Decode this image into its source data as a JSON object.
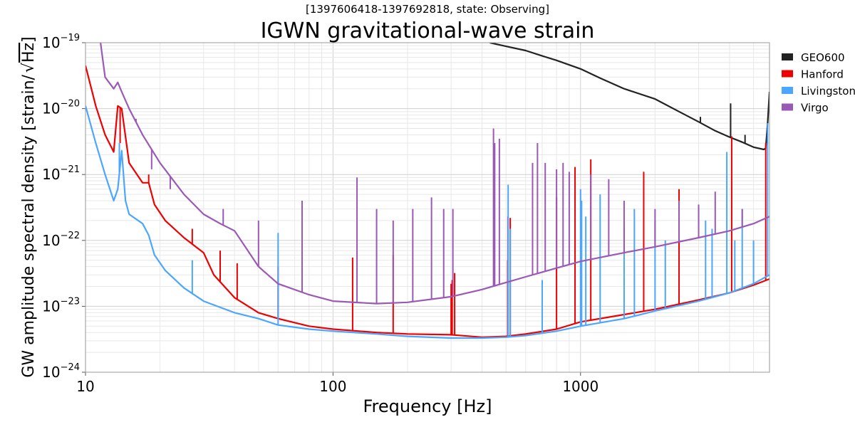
{
  "chart_data": {
    "type": "line",
    "subtitle": "[1397606418-1397692818, state: Observing]",
    "title": "IGWN gravitational-wave strain",
    "xlabel": "Frequency [Hz]",
    "ylabel_prefix": "GW amplitude spectral density [strain/",
    "ylabel_sqrt": "Hz",
    "ylabel_suffix": "]",
    "x_scale": "log",
    "y_scale": "log",
    "xlim": [
      10,
      5800
    ],
    "ylim": [
      1e-24,
      1e-19
    ],
    "x_ticks": [
      {
        "value": 10,
        "label": "10"
      },
      {
        "value": 100,
        "label": "100"
      },
      {
        "value": 1000,
        "label": "1000"
      }
    ],
    "y_ticks": [
      {
        "value": 1e-24,
        "base": "10",
        "exp": "−24"
      },
      {
        "value": 1e-23,
        "base": "10",
        "exp": "−23"
      },
      {
        "value": 1e-22,
        "base": "10",
        "exp": "−22"
      },
      {
        "value": 1e-21,
        "base": "10",
        "exp": "−21"
      },
      {
        "value": 1e-20,
        "base": "10",
        "exp": "−20"
      },
      {
        "value": 1e-19,
        "base": "10",
        "exp": "−19"
      }
    ],
    "grid": true,
    "legend_position": "right",
    "series": [
      {
        "name": "GEO600",
        "color": "#222222",
        "points": [
          [
            430,
            1e-19
          ],
          [
            500,
            8.8e-20
          ],
          [
            600,
            7.6e-20
          ],
          [
            700,
            6.3e-20
          ],
          [
            800,
            5.4e-20
          ],
          [
            1000,
            4e-20
          ],
          [
            1200,
            2.9e-20
          ],
          [
            1500,
            2e-20
          ],
          [
            2000,
            1.4e-20
          ],
          [
            2500,
            9e-21
          ],
          [
            3000,
            6.3e-21
          ],
          [
            3500,
            4.6e-21
          ],
          [
            4000,
            3.7e-21
          ],
          [
            4500,
            3.1e-21
          ],
          [
            5000,
            2.6e-21
          ],
          [
            5500,
            2.4e-21
          ],
          [
            5600,
            2.5e-21
          ],
          [
            5700,
            6e-21
          ],
          [
            5800,
            1.8e-20
          ]
        ],
        "lines": [
          [
            3050,
            7.5e-21
          ],
          [
            4040,
            1.2e-20
          ],
          [
            4620,
            4e-21
          ]
        ]
      },
      {
        "name": "Hanford",
        "color": "#ee0000",
        "points": [
          [
            10,
            4.5e-20
          ],
          [
            11,
            1.1e-20
          ],
          [
            12,
            4e-21
          ],
          [
            13,
            2.2e-21
          ],
          [
            13.5,
            1.1e-20
          ],
          [
            14,
            1e-20
          ],
          [
            15,
            1.5e-21
          ],
          [
            17,
            7.5e-22
          ],
          [
            18,
            7.5e-22
          ],
          [
            19,
            3.5e-22
          ],
          [
            21,
            2e-22
          ],
          [
            25,
            1.1e-22
          ],
          [
            30,
            6.5e-23
          ],
          [
            33,
            3e-23
          ],
          [
            40,
            1.35e-23
          ],
          [
            50,
            8e-24
          ],
          [
            60,
            6.5e-24
          ],
          [
            80,
            5e-24
          ],
          [
            100,
            4.5e-24
          ],
          [
            150,
            4e-24
          ],
          [
            200,
            3.8e-24
          ],
          [
            300,
            3.7e-24
          ],
          [
            400,
            3.4e-24
          ],
          [
            500,
            3.5e-24
          ],
          [
            600,
            3.8e-24
          ],
          [
            800,
            4.5e-24
          ],
          [
            1000,
            5.8e-24
          ],
          [
            1500,
            7.5e-24
          ],
          [
            2000,
            9e-24
          ],
          [
            3000,
            1.25e-23
          ],
          [
            4000,
            1.6e-23
          ],
          [
            5000,
            2.1e-23
          ],
          [
            5800,
            2.6e-23
          ]
        ],
        "lines": [
          [
            13.8,
            3e-21
          ],
          [
            18,
            1e-21
          ],
          [
            27,
            1.5e-22
          ],
          [
            35,
            7e-23
          ],
          [
            41,
            4.5e-23
          ],
          [
            60,
            4e-23
          ],
          [
            120,
            5.5e-23
          ],
          [
            175,
            6e-23
          ],
          [
            300,
            2.2e-23
          ],
          [
            303,
            2.5e-23
          ],
          [
            310,
            3.2e-23
          ],
          [
            508,
            5e-23
          ],
          [
            509,
            2.3e-22
          ],
          [
            520,
            2.2e-22
          ],
          [
            800,
            4.5e-22
          ],
          [
            950,
            1.3e-21
          ],
          [
            1003,
            3e-22
          ],
          [
            1100,
            1.7e-21
          ],
          [
            1800,
            1.1e-21
          ],
          [
            2500,
            6e-22
          ],
          [
            4080,
            3.8e-21
          ],
          [
            5600,
            3e-21
          ]
        ]
      },
      {
        "name": "Livingston",
        "color": "#4ba6ff",
        "points": [
          [
            10,
            1.1e-20
          ],
          [
            11,
            3e-21
          ],
          [
            12,
            1e-21
          ],
          [
            13,
            4e-22
          ],
          [
            13.5,
            6e-22
          ],
          [
            14,
            2.3e-21
          ],
          [
            14.5,
            4e-22
          ],
          [
            15,
            2.5e-22
          ],
          [
            17,
            1.8e-22
          ],
          [
            18,
            1.2e-22
          ],
          [
            19,
            6e-23
          ],
          [
            21,
            3.5e-23
          ],
          [
            25,
            1.9e-23
          ],
          [
            30,
            1.2e-23
          ],
          [
            40,
            8e-24
          ],
          [
            50,
            6.5e-24
          ],
          [
            60,
            5.2e-24
          ],
          [
            80,
            4.5e-24
          ],
          [
            100,
            4.2e-24
          ],
          [
            150,
            3.8e-24
          ],
          [
            200,
            3.5e-24
          ],
          [
            300,
            3.3e-24
          ],
          [
            400,
            3.3e-24
          ],
          [
            500,
            3.4e-24
          ],
          [
            600,
            3.6e-24
          ],
          [
            800,
            4.2e-24
          ],
          [
            1000,
            5e-24
          ],
          [
            1500,
            6.5e-24
          ],
          [
            2000,
            8.5e-24
          ],
          [
            3000,
            1.2e-23
          ],
          [
            4000,
            1.6e-23
          ],
          [
            5000,
            2.2e-23
          ],
          [
            5800,
            3e-23
          ]
        ],
        "lines": [
          [
            13.7,
            3e-21
          ],
          [
            27,
            5e-23
          ],
          [
            60,
            1.3e-22
          ],
          [
            510,
            7e-22
          ],
          [
            520,
            1.5e-22
          ],
          [
            700,
            2.5e-23
          ],
          [
            1000,
            6e-22
          ],
          [
            1010,
            4e-22
          ],
          [
            1050,
            2.3e-22
          ],
          [
            1200,
            5e-22
          ],
          [
            1500,
            1.6e-22
          ],
          [
            1650,
            3e-22
          ],
          [
            2000,
            2e-22
          ],
          [
            2200,
            1e-22
          ],
          [
            3200,
            2e-22
          ],
          [
            3400,
            1.5e-22
          ],
          [
            3900,
            2.2e-21
          ],
          [
            4200,
            1e-22
          ],
          [
            4500,
            3e-22
          ],
          [
            5000,
            1e-22
          ],
          [
            5700,
            6e-21
          ]
        ]
      },
      {
        "name": "Virgo",
        "color": "#9b59b6",
        "points": [
          [
            11.5,
            1e-19
          ],
          [
            12,
            3e-20
          ],
          [
            13,
            2e-20
          ],
          [
            13.5,
            2.5e-20
          ],
          [
            14,
            1.8e-20
          ],
          [
            15,
            1e-20
          ],
          [
            17,
            4e-21
          ],
          [
            20,
            1.5e-21
          ],
          [
            25,
            5e-22
          ],
          [
            30,
            2.5e-22
          ],
          [
            35,
            1.8e-22
          ],
          [
            40,
            1.4e-22
          ],
          [
            50,
            4e-23
          ],
          [
            60,
            2.2e-23
          ],
          [
            80,
            1.5e-23
          ],
          [
            100,
            1.2e-23
          ],
          [
            150,
            1.1e-23
          ],
          [
            200,
            1.15e-23
          ],
          [
            300,
            1.4e-23
          ],
          [
            400,
            1.8e-23
          ],
          [
            500,
            2.3e-23
          ],
          [
            600,
            2.8e-23
          ],
          [
            800,
            3.8e-23
          ],
          [
            1000,
            4.8e-23
          ],
          [
            1500,
            6.5e-23
          ],
          [
            2000,
            8e-23
          ],
          [
            3000,
            1.1e-22
          ],
          [
            4000,
            1.4e-22
          ],
          [
            5000,
            1.8e-22
          ],
          [
            5800,
            2.3e-22
          ]
        ],
        "lines": [
          [
            16,
            7e-21
          ],
          [
            18.5,
            1.2e-21
          ],
          [
            22,
            6e-22
          ],
          [
            36,
            3e-22
          ],
          [
            50,
            2e-22
          ],
          [
            75,
            4e-22
          ],
          [
            125,
            9e-22
          ],
          [
            150,
            3e-22
          ],
          [
            175,
            2e-22
          ],
          [
            210,
            3e-22
          ],
          [
            250,
            4.5e-22
          ],
          [
            280,
            3e-22
          ],
          [
            305,
            3e-22
          ],
          [
            445,
            5e-21
          ],
          [
            450,
            3e-21
          ],
          [
            470,
            3.5e-21
          ],
          [
            640,
            1.5e-21
          ],
          [
            670,
            3e-21
          ],
          [
            720,
            1.5e-21
          ],
          [
            800,
            1.2e-21
          ],
          [
            850,
            1.5e-21
          ],
          [
            900,
            1.1e-21
          ],
          [
            1100,
            1e-21
          ],
          [
            1300,
            8.5e-22
          ],
          [
            1500,
            4e-22
          ],
          [
            2000,
            3e-22
          ],
          [
            2500,
            4e-22
          ],
          [
            3000,
            3.5e-22
          ],
          [
            3500,
            5.5e-22
          ],
          [
            4500,
            3e-22
          ]
        ]
      }
    ]
  }
}
